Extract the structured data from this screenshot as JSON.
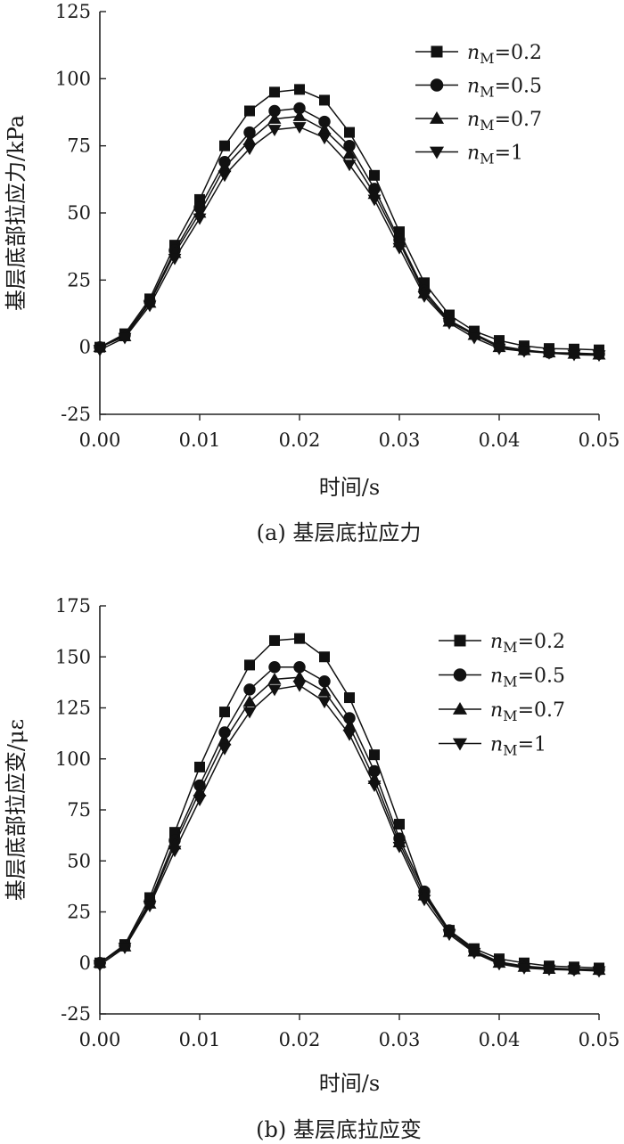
{
  "chart_data": [
    {
      "type": "line",
      "caption": "(a) 基层底拉应力",
      "xlabel": "时间/s",
      "ylabel": "基层底部拉应力/kPa",
      "xlim": [
        0,
        0.05
      ],
      "ylim": [
        -25,
        125
      ],
      "xticks": [
        "0.00",
        "0.01",
        "0.02",
        "0.03",
        "0.04",
        "0.05"
      ],
      "yticks": [
        "-25",
        "0",
        "25",
        "50",
        "75",
        "100",
        "125"
      ],
      "grid": false,
      "legend_position": "top-right",
      "x": [
        0,
        0.0025,
        0.005,
        0.0075,
        0.01,
        0.0125,
        0.015,
        0.0175,
        0.02,
        0.0225,
        0.025,
        0.0275,
        0.03,
        0.0325,
        0.035,
        0.0375,
        0.04,
        0.0425,
        0.045,
        0.0475,
        0.05
      ],
      "series": [
        {
          "legend_var": "n",
          "legend_sub": "M",
          "legend_val": "=0.2",
          "marker": "square",
          "values": [
            0,
            5,
            18,
            38,
            55,
            75,
            88,
            95,
            96,
            92,
            80,
            64,
            43,
            24,
            12,
            6,
            2.5,
            0.5,
            -0.5,
            -0.7,
            -1
          ]
        },
        {
          "legend_var": "n",
          "legend_sub": "M",
          "legend_val": "=0.5",
          "marker": "circle",
          "values": [
            0,
            4.5,
            17,
            36,
            52,
            69,
            80,
            88,
            89,
            84,
            75,
            59,
            40,
            21,
            10,
            5,
            0.5,
            -1,
            -2,
            -2.2,
            -2.5
          ]
        },
        {
          "legend_var": "n",
          "legend_sub": "M",
          "legend_val": "=0.7",
          "marker": "triangle-up",
          "values": [
            0,
            4,
            16.5,
            35,
            50,
            67,
            77,
            85,
            86,
            81,
            72,
            57,
            39,
            20,
            9.5,
            4.5,
            0,
            -1.2,
            -2,
            -2.5,
            -2.8
          ]
        },
        {
          "legend_var": "n",
          "legend_sub": "M",
          "legend_val": "=1",
          "marker": "triangle-down",
          "values": [
            -1,
            3.5,
            15.5,
            33,
            48,
            64,
            74,
            81,
            82,
            78,
            68,
            55,
            37,
            19,
            9,
            3.5,
            -0.5,
            -1.5,
            -2.2,
            -2.8,
            -3
          ]
        }
      ]
    },
    {
      "type": "line",
      "caption": "(b) 基层底拉应变",
      "xlabel": "时间/s",
      "ylabel": "基层底部拉应变/με",
      "xlim": [
        0,
        0.05
      ],
      "ylim": [
        -25,
        175
      ],
      "xticks": [
        "0.00",
        "0.01",
        "0.02",
        "0.03",
        "0.04",
        "0.05"
      ],
      "yticks": [
        "-25",
        "0",
        "25",
        "50",
        "75",
        "100",
        "125",
        "150",
        "175"
      ],
      "grid": false,
      "legend_position": "top-right",
      "x": [
        0,
        0.0025,
        0.005,
        0.0075,
        0.01,
        0.0125,
        0.015,
        0.0175,
        0.02,
        0.0225,
        0.025,
        0.0275,
        0.03,
        0.0325,
        0.035,
        0.0375,
        0.04,
        0.0425,
        0.045,
        0.0475,
        0.05
      ],
      "series": [
        {
          "legend_var": "n",
          "legend_sub": "M",
          "legend_val": "=0.2",
          "marker": "square",
          "values": [
            0,
            9,
            32,
            64,
            96,
            123,
            146,
            158,
            159,
            150,
            130,
            102,
            68,
            34,
            16,
            7,
            2,
            0,
            -1.5,
            -2,
            -2.5
          ]
        },
        {
          "legend_var": "n",
          "legend_sub": "M",
          "legend_val": "=0.5",
          "marker": "circle",
          "values": [
            0,
            8.5,
            30,
            60,
            87,
            113,
            134,
            145,
            145,
            138,
            120,
            94,
            61,
            35,
            16,
            6,
            0.5,
            -1.5,
            -2.5,
            -3,
            -3.2
          ]
        },
        {
          "legend_var": "n",
          "legend_sub": "M",
          "legend_val": "=0.7",
          "marker": "triangle-up",
          "values": [
            0,
            8,
            29,
            58,
            84,
            109,
            128,
            139,
            140,
            133,
            116,
            90,
            59,
            33,
            15,
            5.5,
            0,
            -2,
            -3,
            -3.2,
            -3.5
          ]
        },
        {
          "legend_var": "n",
          "legend_sub": "M",
          "legend_val": "=1",
          "marker": "triangle-down",
          "values": [
            -1,
            7.5,
            28,
            55,
            80,
            105,
            123,
            134,
            136,
            128,
            112,
            87,
            57,
            31,
            14,
            5,
            -0.5,
            -2.5,
            -3.2,
            -3.5,
            -4
          ]
        }
      ]
    }
  ]
}
